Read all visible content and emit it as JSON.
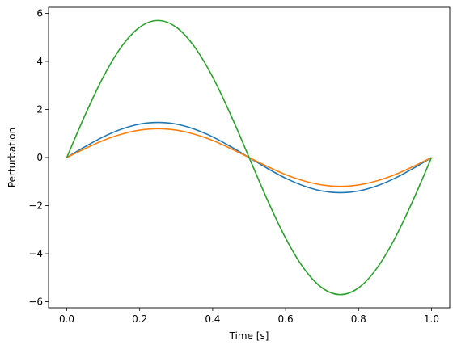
{
  "chart_data": {
    "type": "line",
    "title": "",
    "xlabel": "Time [s]",
    "ylabel": "Perturbation",
    "xlim": [
      -0.05,
      1.05
    ],
    "ylim": [
      -6.25,
      6.25
    ],
    "xticks": [
      0.0,
      0.2,
      0.4,
      0.6,
      0.8,
      1.0
    ],
    "xtick_labels": [
      "0.0",
      "0.2",
      "0.4",
      "0.6",
      "0.8",
      "1.0"
    ],
    "yticks": [
      -6,
      -4,
      -2,
      0,
      2,
      4,
      6
    ],
    "ytick_labels": [
      "−6",
      "−4",
      "−2",
      "0",
      "2",
      "4",
      "6"
    ],
    "grid": false,
    "legend": "none",
    "x": [
      0.0,
      0.05,
      0.1,
      0.15,
      0.2,
      0.25,
      0.3,
      0.35,
      0.4,
      0.45,
      0.5,
      0.55,
      0.6,
      0.65,
      0.7,
      0.75,
      0.8,
      0.85,
      0.9,
      0.95,
      1.0
    ],
    "series": [
      {
        "color": "#1f77b4",
        "values": [
          0.0,
          0.45,
          0.86,
          1.18,
          1.39,
          1.46,
          1.39,
          1.18,
          0.86,
          0.45,
          0.0,
          -0.45,
          -0.86,
          -1.18,
          -1.39,
          -1.46,
          -1.39,
          -1.18,
          -0.86,
          -0.45,
          0.0
        ]
      },
      {
        "color": "#ff7f0e",
        "values": [
          0.0,
          0.37,
          0.71,
          0.97,
          1.14,
          1.2,
          1.14,
          0.97,
          0.71,
          0.37,
          0.0,
          -0.37,
          -0.71,
          -0.97,
          -1.14,
          -1.2,
          -1.14,
          -0.97,
          -0.71,
          -0.37,
          0.0
        ]
      },
      {
        "color": "#2ca02c",
        "values": [
          0.0,
          1.76,
          3.35,
          4.61,
          5.42,
          5.7,
          5.42,
          4.61,
          3.35,
          1.76,
          0.0,
          -1.76,
          -3.35,
          -4.61,
          -5.42,
          -5.7,
          -5.42,
          -4.61,
          -3.35,
          -1.76,
          0.0
        ]
      }
    ]
  }
}
